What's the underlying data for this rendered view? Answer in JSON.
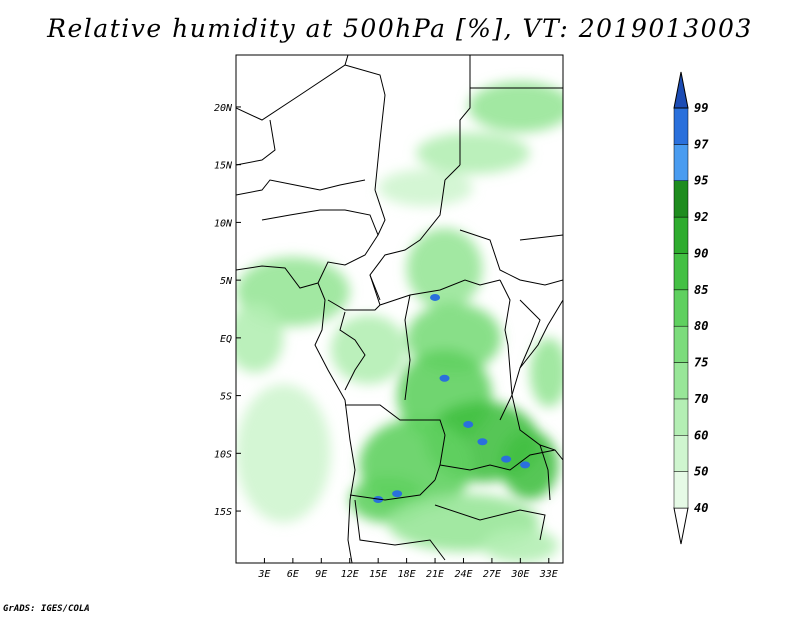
{
  "title": "Relative humidity at 500hPa [%], VT: 2019013003",
  "credit": "GrADS: IGES/COLA",
  "chart_data": {
    "type": "heatmap",
    "variable": "Relative humidity",
    "level": "500hPa",
    "units": "%",
    "valid_time": "2019013003",
    "lon_range": [
      0,
      34.5
    ],
    "lat_range": [
      -19.5,
      24.5
    ],
    "x_ticks": [
      {
        "lon": 3,
        "label": "3E"
      },
      {
        "lon": 6,
        "label": "6E"
      },
      {
        "lon": 9,
        "label": "9E"
      },
      {
        "lon": 12,
        "label": "12E"
      },
      {
        "lon": 15,
        "label": "15E"
      },
      {
        "lon": 18,
        "label": "18E"
      },
      {
        "lon": 21,
        "label": "21E"
      },
      {
        "lon": 24,
        "label": "24E"
      },
      {
        "lon": 27,
        "label": "27E"
      },
      {
        "lon": 30,
        "label": "30E"
      },
      {
        "lon": 33,
        "label": "33E"
      }
    ],
    "y_ticks": [
      {
        "lat": 20,
        "label": "20N"
      },
      {
        "lat": 15,
        "label": "15N"
      },
      {
        "lat": 10,
        "label": "10N"
      },
      {
        "lat": 5,
        "label": "5N"
      },
      {
        "lat": 0,
        "label": "EQ"
      },
      {
        "lat": -5,
        "label": "5S"
      },
      {
        "lat": -10,
        "label": "10S"
      },
      {
        "lat": -15,
        "label": "15S"
      }
    ],
    "colorbar": {
      "levels": [
        40,
        50,
        60,
        70,
        75,
        80,
        85,
        90,
        92,
        95,
        97,
        99
      ],
      "colors": [
        "#ffffff",
        "#e6fae6",
        "#cff5cf",
        "#b4eeb4",
        "#98e698",
        "#7cdc7c",
        "#5fd05f",
        "#44c044",
        "#2eac2e",
        "#1e8c1e",
        "#4a9cf0",
        "#2a70dc",
        "#1c4cb4"
      ],
      "level_labels": [
        "40",
        "50",
        "60",
        "70",
        "75",
        "80",
        "85",
        "90",
        "92",
        "95",
        "97",
        "99"
      ]
    },
    "humid_regions": [
      {
        "lon": 30,
        "lat": 20,
        "rlon": 5.5,
        "rlat": 2.2,
        "rh": 70
      },
      {
        "lon": 25,
        "lat": 16,
        "rlon": 6,
        "rlat": 1.8,
        "rh": 60
      },
      {
        "lon": 20,
        "lat": 13,
        "rlon": 5,
        "rlat": 1.6,
        "rh": 55
      },
      {
        "lon": 22,
        "lat": 6,
        "rlon": 4,
        "rlat": 3.5,
        "rh": 70
      },
      {
        "lon": 6,
        "lat": 4,
        "rlon": 6,
        "rlat": 3,
        "rh": 70
      },
      {
        "lon": 2,
        "lat": 0,
        "rlon": 3,
        "rlat": 3,
        "rh": 60
      },
      {
        "lon": 14,
        "lat": -1,
        "rlon": 4,
        "rlat": 3,
        "rh": 65
      },
      {
        "lon": 23,
        "lat": 0,
        "rlon": 5,
        "rlat": 3,
        "rh": 75
      },
      {
        "lon": 22,
        "lat": -5,
        "rlon": 5,
        "rlat": 4,
        "rh": 82
      },
      {
        "lon": 26,
        "lat": -9,
        "rlon": 6,
        "rlat": 3.5,
        "rh": 85
      },
      {
        "lon": 19,
        "lat": -11,
        "rlon": 6,
        "rlat": 4,
        "rh": 80
      },
      {
        "lon": 16,
        "lat": -14,
        "rlon": 4,
        "rlat": 2,
        "rh": 82
      },
      {
        "lon": 31,
        "lat": -11,
        "rlon": 3,
        "rlat": 3,
        "rh": 85
      },
      {
        "lon": 5,
        "lat": -10,
        "rlon": 5,
        "rlat": 6,
        "rh": 50
      },
      {
        "lon": 24,
        "lat": -16,
        "rlon": 8,
        "rlat": 2.5,
        "rh": 70
      },
      {
        "lon": 30,
        "lat": -18,
        "rlon": 4,
        "rlat": 1.5,
        "rh": 65
      },
      {
        "lon": 33,
        "lat": -3,
        "rlon": 2,
        "rlat": 3,
        "rh": 70
      }
    ],
    "saturated_cells": [
      {
        "lon": 21,
        "lat": 3.5,
        "rh": 97
      },
      {
        "lon": 22,
        "lat": -3.5,
        "rh": 97
      },
      {
        "lon": 24.5,
        "lat": -7.5,
        "rh": 97
      },
      {
        "lon": 26,
        "lat": -9,
        "rh": 97
      },
      {
        "lon": 28.5,
        "lat": -10.5,
        "rh": 97
      },
      {
        "lon": 30.5,
        "lat": -11,
        "rh": 97
      },
      {
        "lon": 17,
        "lat": -13.5,
        "rh": 97
      },
      {
        "lon": 15,
        "lat": -14,
        "rh": 97
      }
    ]
  }
}
